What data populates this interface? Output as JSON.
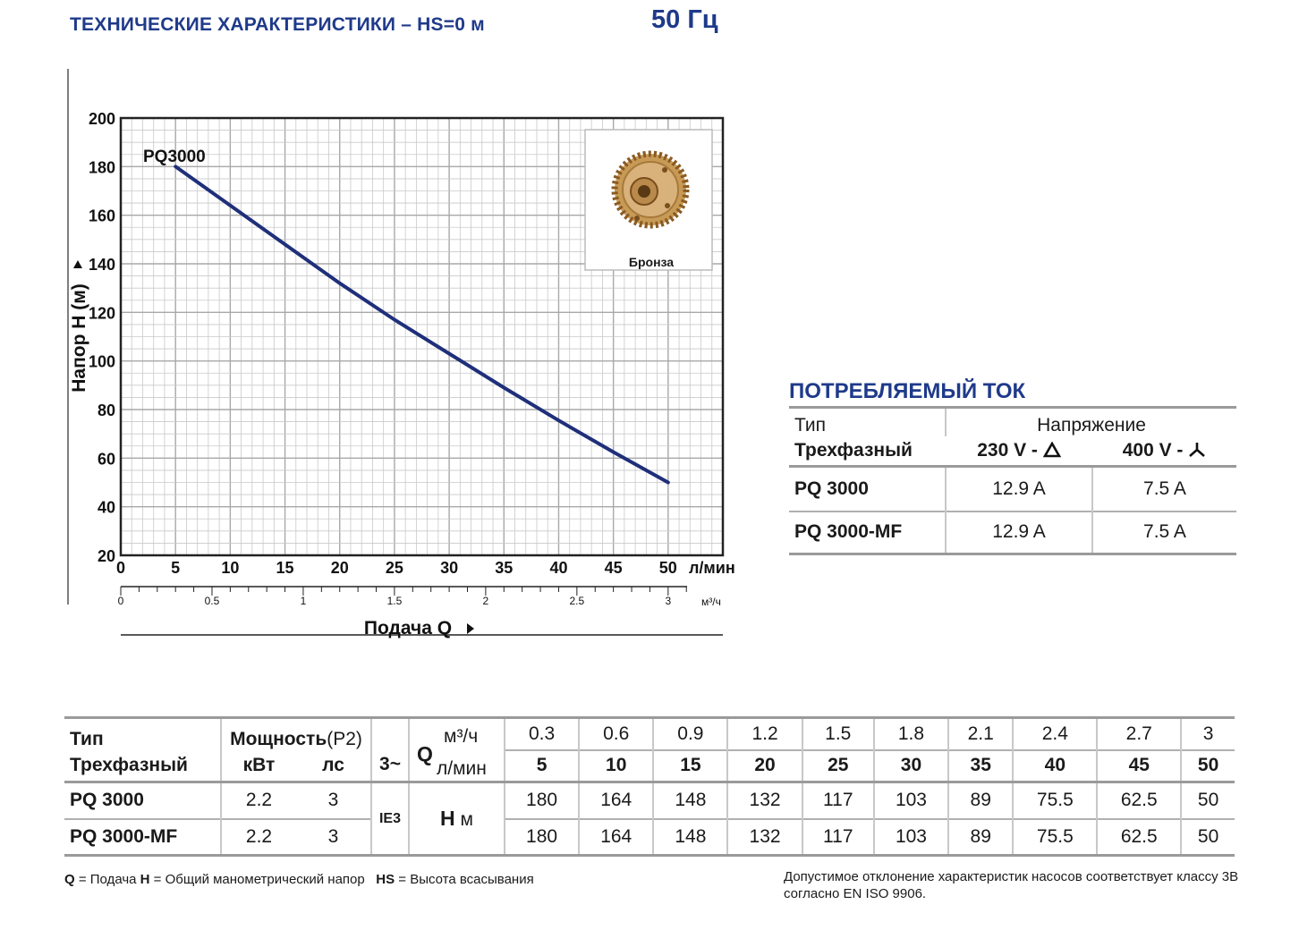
{
  "header": {
    "title": "ТЕХНИЧЕСКИЕ ХАРАКТЕРИСТИКИ – HS=0 м",
    "frequency": "50 Гц"
  },
  "chart": {
    "curve_label": "PQ3000",
    "y_axis_label": "Напор H  (м)",
    "x_axis_label": "Подача Q",
    "x_unit_primary": "л/мин",
    "x_unit_secondary": "м³/ч",
    "inset_label": "Бронза"
  },
  "chart_data": {
    "type": "line",
    "xlabel": "Подача Q",
    "ylabel": "Напор H  (м)",
    "xlim": [
      0,
      55
    ],
    "ylim": [
      20,
      200
    ],
    "x_ticks": [
      "0",
      "5",
      "10",
      "15",
      "20",
      "25",
      "30",
      "35",
      "40",
      "45",
      "50"
    ],
    "y_ticks": [
      "20",
      "40",
      "60",
      "80",
      "100",
      "120",
      "140",
      "160",
      "180",
      "200"
    ],
    "secondary_x_ticks": [
      "0",
      "0.5",
      "1",
      "1.5",
      "2",
      "2.5",
      "3"
    ],
    "grid": true,
    "series": [
      {
        "name": "PQ3000",
        "x": [
          5,
          10,
          15,
          20,
          25,
          30,
          35,
          40,
          45,
          50
        ],
        "y": [
          180,
          164,
          148,
          132,
          117,
          103,
          89,
          75.5,
          62.5,
          50
        ]
      }
    ],
    "colors": {
      "line": "#1f2f7a",
      "grid": "#c9c9c9"
    }
  },
  "current_table": {
    "title": "ПОТРЕБЛЯЕМЫЙ ТОК",
    "type_label": "Тип",
    "voltage_label": "Напряжение",
    "phase_label": "Трехфазный",
    "v1": "230 V - ",
    "v2": "400 V - ",
    "rows": [
      {
        "model": "PQ 3000",
        "a1": "12.9 A",
        "a2": "7.5 A"
      },
      {
        "model": "PQ 3000-MF",
        "a1": "12.9 A",
        "a2": "7.5 A"
      }
    ]
  },
  "perf_table": {
    "type_label": "Тип",
    "phase_label": "Трехфазный",
    "power_label": "Мощность",
    "power_p2": "(P2)",
    "kw_label": "кВт",
    "hp_label": "лс",
    "phase_symbol": "3~",
    "q_label": "Q",
    "m3h_label": "м³/ч",
    "lmin_label": "л/мин",
    "ie_label": "IE3",
    "h_label": "H",
    "h_unit": "м",
    "q_m3h": [
      "0.3",
      "0.6",
      "0.9",
      "1.2",
      "1.5",
      "1.8",
      "2.1",
      "2.4",
      "2.7",
      "3"
    ],
    "q_lmin": [
      "5",
      "10",
      "15",
      "20",
      "25",
      "30",
      "35",
      "40",
      "45",
      "50"
    ],
    "rows": [
      {
        "model": "PQ 3000",
        "kw": "2.2",
        "hp": "3",
        "h": [
          "180",
          "164",
          "148",
          "132",
          "117",
          "103",
          "89",
          "75.5",
          "62.5",
          "50"
        ]
      },
      {
        "model": "PQ 3000-MF",
        "kw": "2.2",
        "hp": "3",
        "h": [
          "180",
          "164",
          "148",
          "132",
          "117",
          "103",
          "89",
          "75.5",
          "62.5",
          "50"
        ]
      }
    ]
  },
  "footer": {
    "q_key": "Q",
    "q_text": " = Подача ",
    "h_key": "H",
    "h_text": " = Общий манометрический напор",
    "hs_key": "HS",
    "hs_text": " = Высота всасывания",
    "tolerance": "Допустимое отклонение характеристик насосов соответствует классу 3B согласно EN ISO 9906."
  }
}
